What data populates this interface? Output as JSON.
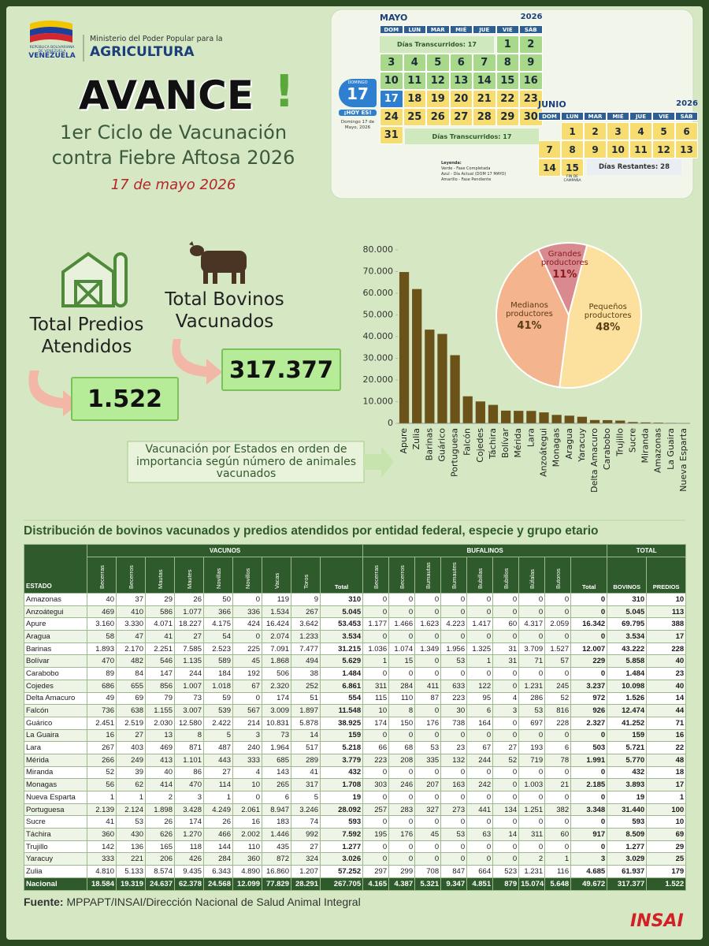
{
  "header": {
    "country_small": "REPÚBLICA BOLIVARIANA DE VENEZUELA",
    "country": "VENEZUELA",
    "ministry": "Ministerio del Poder Popular para la",
    "ministry_name": "AGRICULTURA",
    "title": "AVANCE",
    "title_mark": "!",
    "subtitle_1": "1er Ciclo de Vacunación",
    "subtitle_2": "contra Fiebre Aftosa 2026",
    "date": "17 de mayo 2026"
  },
  "calendar": {
    "may": {
      "month": "MAYO",
      "year": "2026",
      "weekdays": [
        "DOM",
        "LUN",
        "MAR",
        "MIÉ",
        "JUE",
        "VIE",
        "SÁB"
      ],
      "weeks": [
        [
          null,
          null,
          null,
          null,
          null,
          "1",
          "2"
        ],
        [
          "3",
          "4",
          "5",
          "6",
          "7",
          "8",
          "9"
        ],
        [
          "10",
          "11",
          "12",
          "13",
          "14",
          "15",
          "16"
        ],
        [
          "17",
          "18",
          "19",
          "20",
          "21",
          "22",
          "23"
        ],
        [
          "24",
          "25",
          "26",
          "27",
          "28",
          "29",
          "30"
        ],
        [
          "31",
          null,
          null,
          null,
          null,
          null,
          null
        ]
      ],
      "elapsed_top": "Días Transcurridos: 17",
      "elapsed_bottom": "Días Transcurridos: 17"
    },
    "today": {
      "weekday": "DOMINGO",
      "day": "17",
      "badge": "¡HOY ES!",
      "text": "Domingo 17 de Mayo, 2026"
    },
    "june": {
      "month": "JUNIO",
      "year": "2026",
      "weekdays": [
        "DOM",
        "LUN",
        "MAR",
        "MIÉ",
        "JUE",
        "VIE",
        "SÁB"
      ],
      "weeks": [
        [
          null,
          "1",
          "2",
          "3",
          "4",
          "5",
          "6"
        ],
        [
          "7",
          "8",
          "9",
          "10",
          "11",
          "12",
          "13"
        ],
        [
          "14",
          "15",
          null,
          null,
          null,
          null,
          null
        ]
      ],
      "end_note": "FIN DE CAMPAÑA",
      "remaining": "Días Restantes: 28"
    },
    "legend": [
      "Leyenda:",
      "Verde - Fase Completada",
      "Azul - Día Actual (DOM 17 MAYO)",
      "Amarillo - Fase Pendiente"
    ]
  },
  "summary": {
    "predios_label": "Total Predios Atendidos",
    "predios_value": "1.522",
    "bovinos_label": "Total Bovinos Vacunados",
    "bovinos_value": "317.377"
  },
  "chart_data": [
    {
      "type": "bar",
      "annotation": "Vacunación por Estados en orden de importancia según número de animales vacunados",
      "categories": [
        "Apure",
        "Zulia",
        "Barinas",
        "Guárico",
        "Portuguesa",
        "Falcón",
        "Cojedes",
        "Táchira",
        "Bolívar",
        "Mérida",
        "Lara",
        "Anzoátegui",
        "Monagas",
        "Aragua",
        "Yaracuy",
        "Delta Amacuro",
        "Carabobo",
        "Trujillo",
        "Sucre",
        "Miranda",
        "Amazonas",
        "La Guaira",
        "Nueva Esparta"
      ],
      "values": [
        69795,
        61937,
        43222,
        41252,
        31440,
        12474,
        10098,
        8509,
        5858,
        5770,
        5721,
        5045,
        3893,
        3534,
        3029,
        1526,
        1484,
        1277,
        593,
        432,
        310,
        159,
        19
      ],
      "color": "#6b5219",
      "ylim": [
        0,
        80000
      ],
      "yticks": [
        0,
        {
          "value": 10000,
          "label": "10.000"
        },
        {
          "value": 20000,
          "label": "20.000"
        },
        {
          "value": 30000,
          "label": "30.000"
        },
        {
          "value": 40000,
          "label": "40.000"
        },
        {
          "value": 50000,
          "label": "50.000"
        },
        {
          "value": 60000,
          "label": "60.000"
        },
        {
          "value": 70000,
          "label": "70.000"
        },
        {
          "value": 80000,
          "label": "80.000"
        }
      ],
      "grid": false
    },
    {
      "type": "pie",
      "categories": [
        "Grandes productores",
        "Pequeños productores",
        "Medianos productores"
      ],
      "values": [
        11,
        48,
        41
      ],
      "value_labels": [
        "11%",
        "48%",
        "41%"
      ],
      "colors": [
        "#d98a8e",
        "#fbe19d",
        "#f3b48e"
      ],
      "label_colors": [
        "#8b1a22",
        "#5a3d12",
        "#5a3d12"
      ]
    }
  ],
  "table": {
    "title": "Distribución de bovinos vacunados y predios atendidos por entidad federal, especie y grupo etario",
    "estado_header": "ESTADO",
    "groups": [
      "VACUNOS",
      "BUFALINOS",
      "TOTAL"
    ],
    "vacunos_columns": [
      "Becerras",
      "Becerros",
      "Mautas",
      "Mautes",
      "Novillas",
      "Novillos",
      "Vacas",
      "Toros",
      "Total"
    ],
    "bufalinos_columns": [
      "Becerras",
      "Becerros",
      "Bumautas",
      "Bumautes",
      "Bubillas",
      "Bubillos",
      "Búfalas",
      "Butoros",
      "Total"
    ],
    "total_columns": [
      "BOVINOS",
      "PREDIOS"
    ],
    "rows": [
      [
        "Amazonas",
        "40",
        "37",
        "29",
        "26",
        "50",
        "0",
        "119",
        "9",
        "310",
        "0",
        "0",
        "0",
        "0",
        "0",
        "0",
        "0",
        "0",
        "0",
        "310",
        "10"
      ],
      [
        "Anzoátegui",
        "469",
        "410",
        "586",
        "1.077",
        "366",
        "336",
        "1.534",
        "267",
        "5.045",
        "0",
        "0",
        "0",
        "0",
        "0",
        "0",
        "0",
        "0",
        "0",
        "5.045",
        "113"
      ],
      [
        "Apure",
        "3.160",
        "3.330",
        "4.071",
        "18.227",
        "4.175",
        "424",
        "16.424",
        "3.642",
        "53.453",
        "1.177",
        "1.466",
        "1.623",
        "4.223",
        "1.417",
        "60",
        "4.317",
        "2.059",
        "16.342",
        "69.795",
        "388"
      ],
      [
        "Aragua",
        "58",
        "47",
        "41",
        "27",
        "54",
        "0",
        "2.074",
        "1.233",
        "3.534",
        "0",
        "0",
        "0",
        "0",
        "0",
        "0",
        "0",
        "0",
        "0",
        "3.534",
        "17"
      ],
      [
        "Barinas",
        "1.893",
        "2.170",
        "2.251",
        "7.585",
        "2.523",
        "225",
        "7.091",
        "7.477",
        "31.215",
        "1.036",
        "1.074",
        "1.349",
        "1.956",
        "1.325",
        "31",
        "3.709",
        "1.527",
        "12.007",
        "43.222",
        "228"
      ],
      [
        "Bolívar",
        "470",
        "482",
        "546",
        "1.135",
        "589",
        "45",
        "1.868",
        "494",
        "5.629",
        "1",
        "15",
        "0",
        "53",
        "1",
        "31",
        "71",
        "57",
        "229",
        "5.858",
        "40"
      ],
      [
        "Carabobo",
        "89",
        "84",
        "147",
        "244",
        "184",
        "192",
        "506",
        "38",
        "1.484",
        "0",
        "0",
        "0",
        "0",
        "0",
        "0",
        "0",
        "0",
        "0",
        "1.484",
        "23"
      ],
      [
        "Cojedes",
        "686",
        "655",
        "856",
        "1.007",
        "1.018",
        "67",
        "2.320",
        "252",
        "6.861",
        "311",
        "284",
        "411",
        "633",
        "122",
        "0",
        "1.231",
        "245",
        "3.237",
        "10.098",
        "40"
      ],
      [
        "Delta Amacuro",
        "49",
        "69",
        "79",
        "73",
        "59",
        "0",
        "174",
        "51",
        "554",
        "115",
        "110",
        "87",
        "223",
        "95",
        "4",
        "286",
        "52",
        "972",
        "1.526",
        "14"
      ],
      [
        "Falcón",
        "736",
        "638",
        "1.155",
        "3.007",
        "539",
        "567",
        "3.009",
        "1.897",
        "11.548",
        "10",
        "8",
        "0",
        "30",
        "6",
        "3",
        "53",
        "816",
        "926",
        "12.474",
        "44"
      ],
      [
        "Guárico",
        "2.451",
        "2.519",
        "2.030",
        "12.580",
        "2.422",
        "214",
        "10.831",
        "5.878",
        "38.925",
        "174",
        "150",
        "176",
        "738",
        "164",
        "0",
        "697",
        "228",
        "2.327",
        "41.252",
        "71"
      ],
      [
        "La Guaira",
        "16",
        "27",
        "13",
        "8",
        "5",
        "3",
        "73",
        "14",
        "159",
        "0",
        "0",
        "0",
        "0",
        "0",
        "0",
        "0",
        "0",
        "0",
        "159",
        "16"
      ],
      [
        "Lara",
        "267",
        "403",
        "469",
        "871",
        "487",
        "240",
        "1.964",
        "517",
        "5.218",
        "66",
        "68",
        "53",
        "23",
        "67",
        "27",
        "193",
        "6",
        "503",
        "5.721",
        "22"
      ],
      [
        "Mérida",
        "266",
        "249",
        "413",
        "1.101",
        "443",
        "333",
        "685",
        "289",
        "3.779",
        "223",
        "208",
        "335",
        "132",
        "244",
        "52",
        "719",
        "78",
        "1.991",
        "5.770",
        "48"
      ],
      [
        "Miranda",
        "52",
        "39",
        "40",
        "86",
        "27",
        "4",
        "143",
        "41",
        "432",
        "0",
        "0",
        "0",
        "0",
        "0",
        "0",
        "0",
        "0",
        "0",
        "432",
        "18"
      ],
      [
        "Monagas",
        "56",
        "62",
        "414",
        "470",
        "114",
        "10",
        "265",
        "317",
        "1.708",
        "303",
        "246",
        "207",
        "163",
        "242",
        "0",
        "1.003",
        "21",
        "2.185",
        "3.893",
        "17"
      ],
      [
        "Nueva Esparta",
        "1",
        "1",
        "2",
        "3",
        "1",
        "0",
        "6",
        "5",
        "19",
        "0",
        "0",
        "0",
        "0",
        "0",
        "0",
        "0",
        "0",
        "0",
        "19",
        "1"
      ],
      [
        "Portuguesa",
        "2.139",
        "2.124",
        "1.898",
        "3.428",
        "4.249",
        "2.061",
        "8.947",
        "3.246",
        "28.092",
        "257",
        "283",
        "327",
        "273",
        "441",
        "134",
        "1.251",
        "382",
        "3.348",
        "31.440",
        "100"
      ],
      [
        "Sucre",
        "41",
        "53",
        "26",
        "174",
        "26",
        "16",
        "183",
        "74",
        "593",
        "0",
        "0",
        "0",
        "0",
        "0",
        "0",
        "0",
        "0",
        "0",
        "593",
        "10"
      ],
      [
        "Táchira",
        "360",
        "430",
        "626",
        "1.270",
        "466",
        "2.002",
        "1.446",
        "992",
        "7.592",
        "195",
        "176",
        "45",
        "53",
        "63",
        "14",
        "311",
        "60",
        "917",
        "8.509",
        "69"
      ],
      [
        "Trujillo",
        "142",
        "136",
        "165",
        "118",
        "144",
        "110",
        "435",
        "27",
        "1.277",
        "0",
        "0",
        "0",
        "0",
        "0",
        "0",
        "0",
        "0",
        "0",
        "1.277",
        "29"
      ],
      [
        "Yaracuy",
        "333",
        "221",
        "206",
        "426",
        "284",
        "360",
        "872",
        "324",
        "3.026",
        "0",
        "0",
        "0",
        "0",
        "0",
        "0",
        "2",
        "1",
        "3",
        "3.029",
        "25"
      ],
      [
        "Zulia",
        "4.810",
        "5.133",
        "8.574",
        "9.435",
        "6.343",
        "4.890",
        "16.860",
        "1.207",
        "57.252",
        "297",
        "299",
        "708",
        "847",
        "664",
        "523",
        "1.231",
        "116",
        "4.685",
        "61.937",
        "179"
      ],
      [
        "Nacional",
        "18.584",
        "19.319",
        "24.637",
        "62.378",
        "24.568",
        "12.099",
        "77.829",
        "28.291",
        "267.705",
        "4.165",
        "4.387",
        "5.321",
        "9.347",
        "4.851",
        "879",
        "15.074",
        "5.648",
        "49.672",
        "317.377",
        "1.522"
      ]
    ]
  },
  "footer": {
    "source_label": "Fuente:",
    "source": "MPPAPT/INSAI/Dirección Nacional de Salud Animal Integral",
    "logo": "INSAI"
  }
}
